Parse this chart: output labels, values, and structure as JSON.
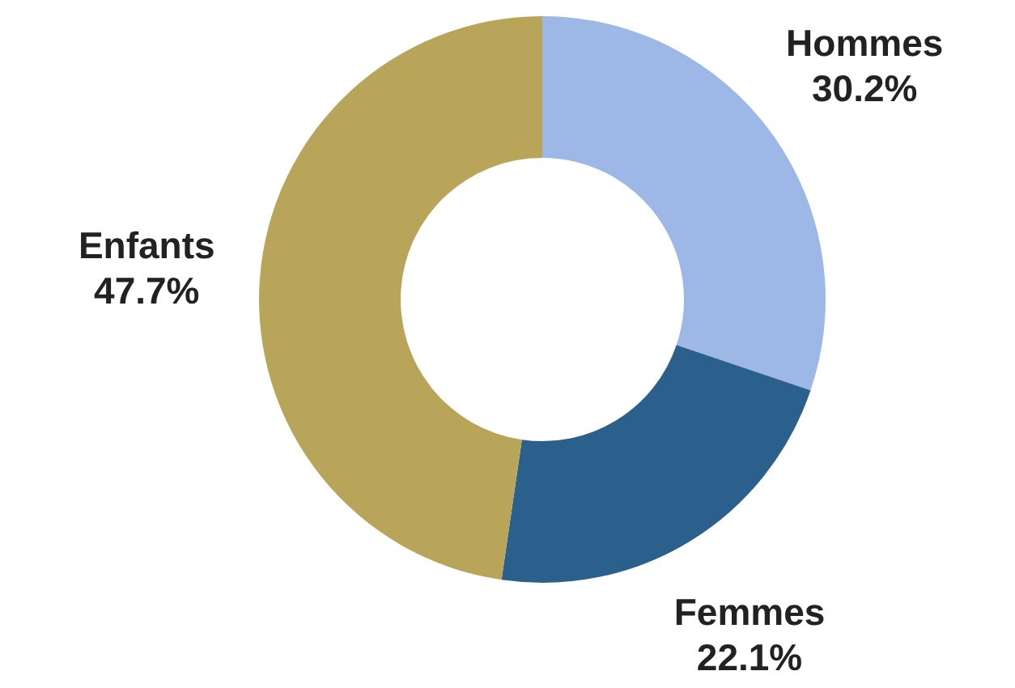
{
  "chart_data": {
    "type": "donut",
    "categories": [
      "Hommes",
      "Femmes",
      "Enfants"
    ],
    "values": [
      30.2,
      22.1,
      47.7
    ],
    "value_labels": [
      "30.2%",
      "22.1%",
      "47.7%"
    ],
    "colors": [
      "#9db8e6",
      "#2b5f8c",
      "#b9a55a"
    ]
  }
}
